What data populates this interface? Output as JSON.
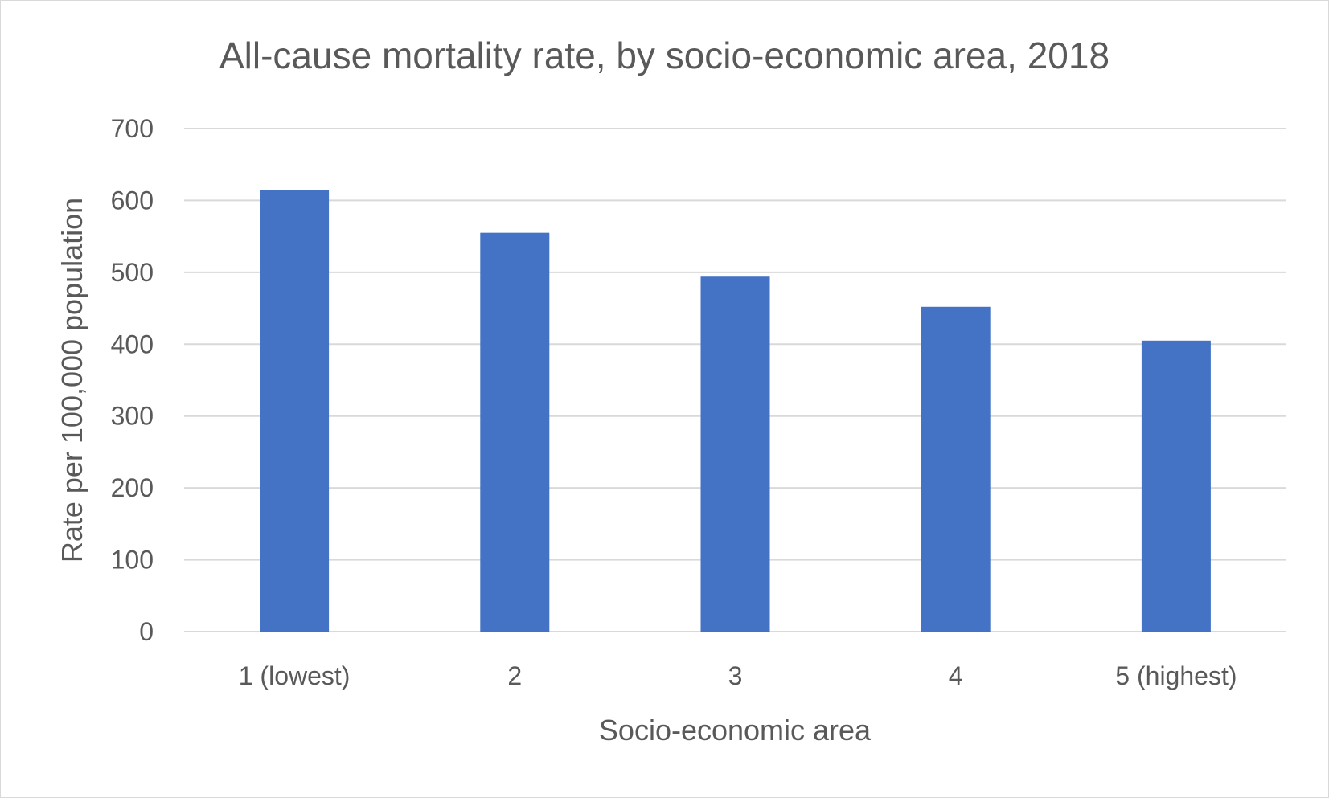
{
  "chart_data": {
    "type": "bar",
    "title": "All-cause mortality rate, by socio-economic area, 2018",
    "xlabel": "Socio-economic area",
    "ylabel": "Rate per 100,000 population",
    "categories": [
      "1 (lowest)",
      "2",
      "3",
      "4",
      "5 (highest)"
    ],
    "values": [
      615,
      555,
      494,
      452,
      405
    ],
    "ylim": [
      0,
      700
    ],
    "yticks": [
      0,
      100,
      200,
      300,
      400,
      500,
      600,
      700
    ],
    "grid": true,
    "legend": "none",
    "bar_color": "#4472C4",
    "grid_color": "#d9d9d9",
    "text_color": "#595959"
  }
}
